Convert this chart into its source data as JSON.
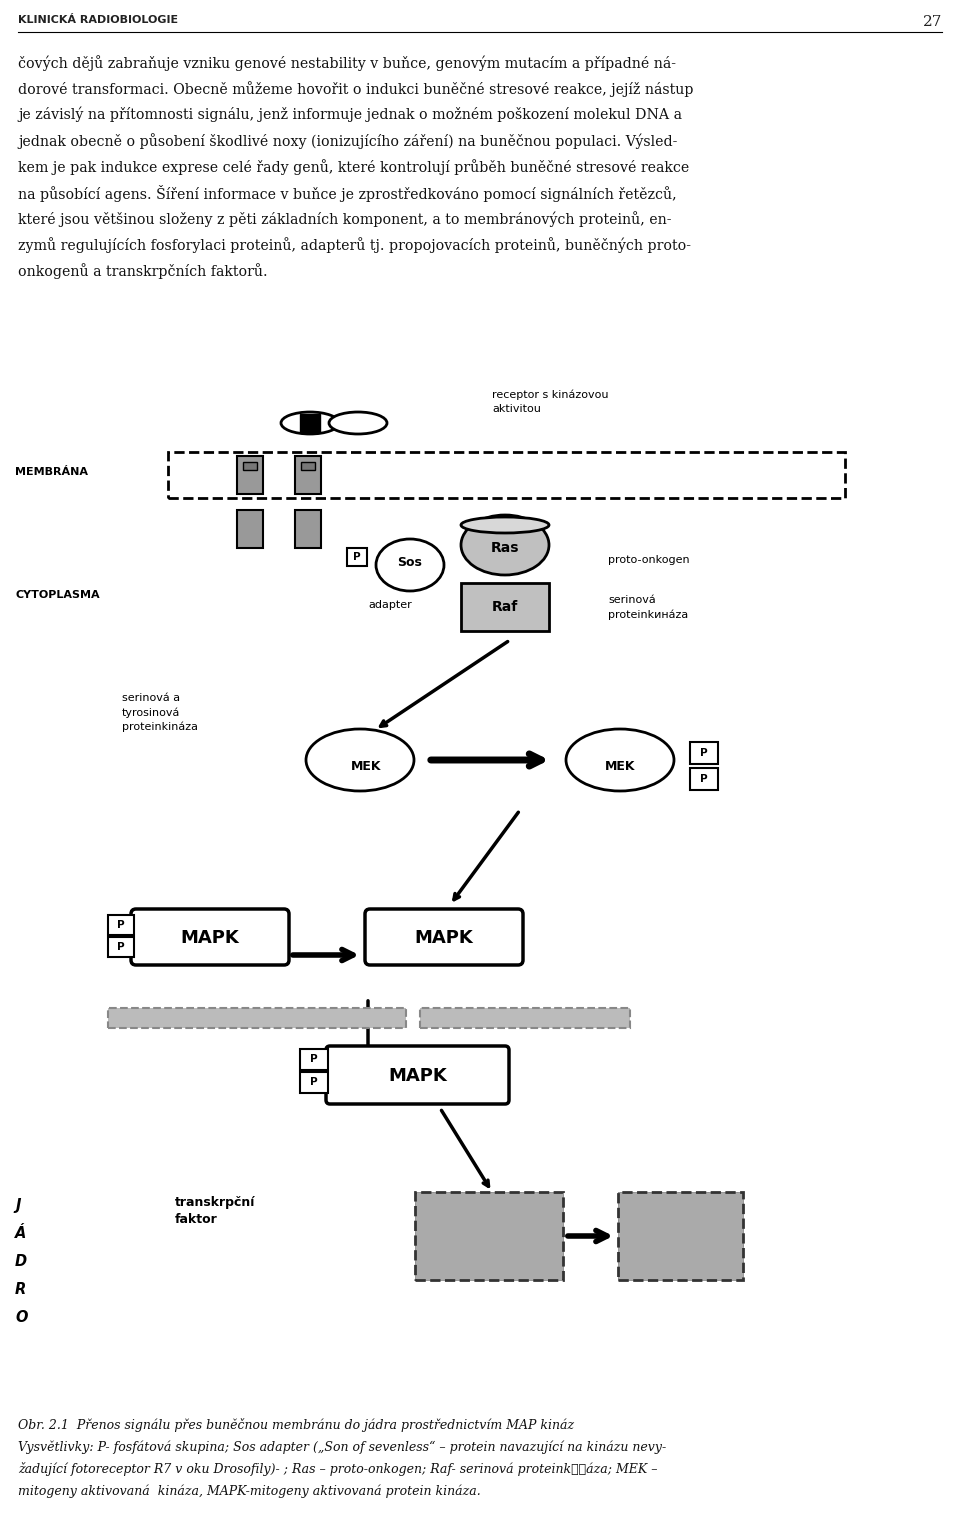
{
  "page_title": "KLINICKÁ RADIOBIOLOGIE",
  "page_number": "27",
  "para_lines": [
    "čových dějů zabraňuje vzniku genové nestability v buňce, genovým mutacím a případné ná-",
    "dorové transformaci. Obecně můžeme hovořit o indukci buněčné stresové reakce, jejíž nástup",
    "je závislý na přítomnosti signálu, jenž informuje jednak o možném poškození molekul DNA a",
    "jednak obecně o působení škodlivé noxy (ionizujícího záření) na buněčnou populaci. Výsled-",
    "kem je pak indukce exprese celé řady genů, které kontrolují průběh buněčné stresové reakce",
    "na působící agens. Šíření informace v buňce je zprostředkováno pomocí signálních řetězců,",
    "které jsou většinou složeny z pěti základních komponent, a to membránových proteinů, en-",
    "zymů regulujících fosforylaci proteinů, adapterů tj. propojovacích proteinů, buněčných proto-",
    "onkogenů a transkrpčních faktorů."
  ],
  "caption_lines": [
    "Obr. 2.1  Přenos signálu přes buněčnou membránu do jádra prostřednictvím MAP kináz",
    "Vysvětlivky: P- fosfátová skupina; Sos adapter („Son of sevenless“ – protein navazující na kinázu nevy-",
    "žadující fotoreceptor R7 v oku Drosofily)- ; Ras – proto-onkogen; Raf- serinová proteinkினáza; MEK –",
    "mitogeny aktivovaná  kináza, MAPK-mitogeny aktivovaná protein kináza."
  ],
  "bg_color": "#ffffff",
  "text_color": "#000000"
}
